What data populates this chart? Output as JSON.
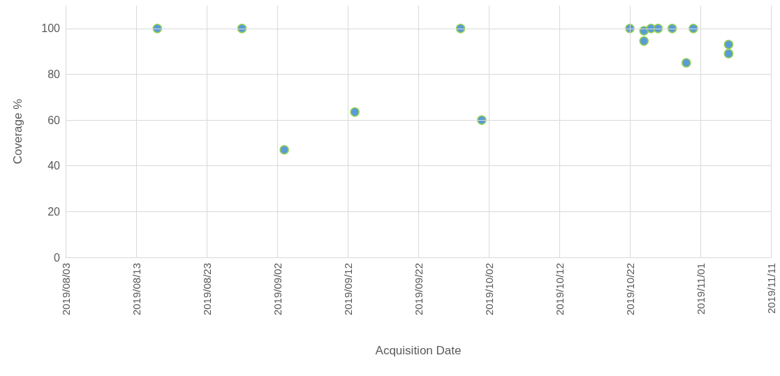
{
  "chart_data": {
    "type": "scatter",
    "xlabel": "Acquisition Date",
    "ylabel": "Coverage %",
    "x": [
      "2019-08-16",
      "2019-08-28",
      "2019-09-03",
      "2019-09-13",
      "2019-09-28",
      "2019-10-01",
      "2019-10-22",
      "2019-10-24",
      "2019-10-24",
      "2019-10-25",
      "2019-10-26",
      "2019-10-28",
      "2019-10-30",
      "2019-10-31",
      "2019-11-05",
      "2019-11-05"
    ],
    "values": [
      100,
      100,
      47,
      63.5,
      100,
      60,
      100,
      99,
      94.5,
      100,
      100,
      100,
      85,
      100,
      93,
      89
    ],
    "color": "#5b9bd5",
    "marker": "circle",
    "grid": true,
    "xlim": [
      "2019-08-03",
      "2019-11-11"
    ],
    "xticks": [
      {
        "value": "2019-08-03",
        "label": "2019/08/03"
      },
      {
        "value": "2019-08-13",
        "label": "2019/08/13"
      },
      {
        "value": "2019-08-23",
        "label": "2019/08/23"
      },
      {
        "value": "2019-09-02",
        "label": "2019/09/02"
      },
      {
        "value": "2019-09-12",
        "label": "2019/09/12"
      },
      {
        "value": "2019-09-22",
        "label": "2019/09/22"
      },
      {
        "value": "2019-10-02",
        "label": "2019/10/02"
      },
      {
        "value": "2019-10-12",
        "label": "2019/10/12"
      },
      {
        "value": "2019-10-22",
        "label": "2019/10/22"
      },
      {
        "value": "2019-11-01",
        "label": "2019/11/01"
      },
      {
        "value": "2019-11-11",
        "label": "2019/11/11"
      }
    ],
    "ylim": [
      0,
      110
    ],
    "yticks": [
      0,
      20,
      40,
      60,
      80,
      100
    ]
  }
}
